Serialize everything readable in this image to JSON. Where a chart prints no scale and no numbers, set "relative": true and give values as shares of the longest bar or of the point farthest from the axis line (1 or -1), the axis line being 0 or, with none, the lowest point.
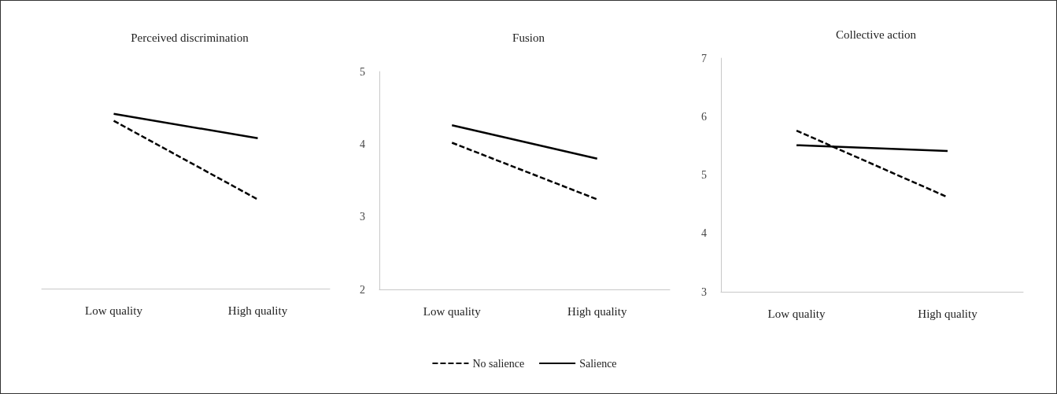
{
  "chart_data": [
    {
      "type": "line",
      "title": "Perceived discrimination",
      "categories": [
        "Low quality",
        "High quality"
      ],
      "relative": true,
      "tick_labels": "x",
      "marker": "none",
      "series": [
        {
          "color": "#000000",
          "line_style": "dashed",
          "values": [
            0.96,
            0.51
          ]
        },
        {
          "color": "#000000",
          "line_style": "solid",
          "values": [
            1,
            0.86
          ]
        }
      ]
    },
    {
      "type": "line",
      "title": "Fusion",
      "categories": [
        "Low quality",
        "High quality"
      ],
      "ylim": [
        2,
        5
      ],
      "yticks": [
        2,
        3,
        4,
        5
      ],
      "marker": "none",
      "legend": "bottom",
      "series": [
        {
          "name": "No salience",
          "color": "#000000",
          "line_style": "dashed",
          "values": [
            4.02,
            3.24
          ]
        },
        {
          "name": "Salience",
          "color": "#000000",
          "line_style": "solid",
          "values": [
            4.26,
            3.8
          ]
        }
      ]
    },
    {
      "type": "line",
      "title": "Collective action",
      "categories": [
        "Low quality",
        "High quality"
      ],
      "ylim": [
        3,
        7
      ],
      "yticks": [
        3,
        4,
        5,
        6,
        7
      ],
      "marker": "none",
      "series": [
        {
          "color": "#000000",
          "line_style": "dashed",
          "values": [
            5.76,
            4.62
          ]
        },
        {
          "color": "#000000",
          "line_style": "solid",
          "values": [
            5.51,
            5.41
          ]
        }
      ]
    }
  ]
}
